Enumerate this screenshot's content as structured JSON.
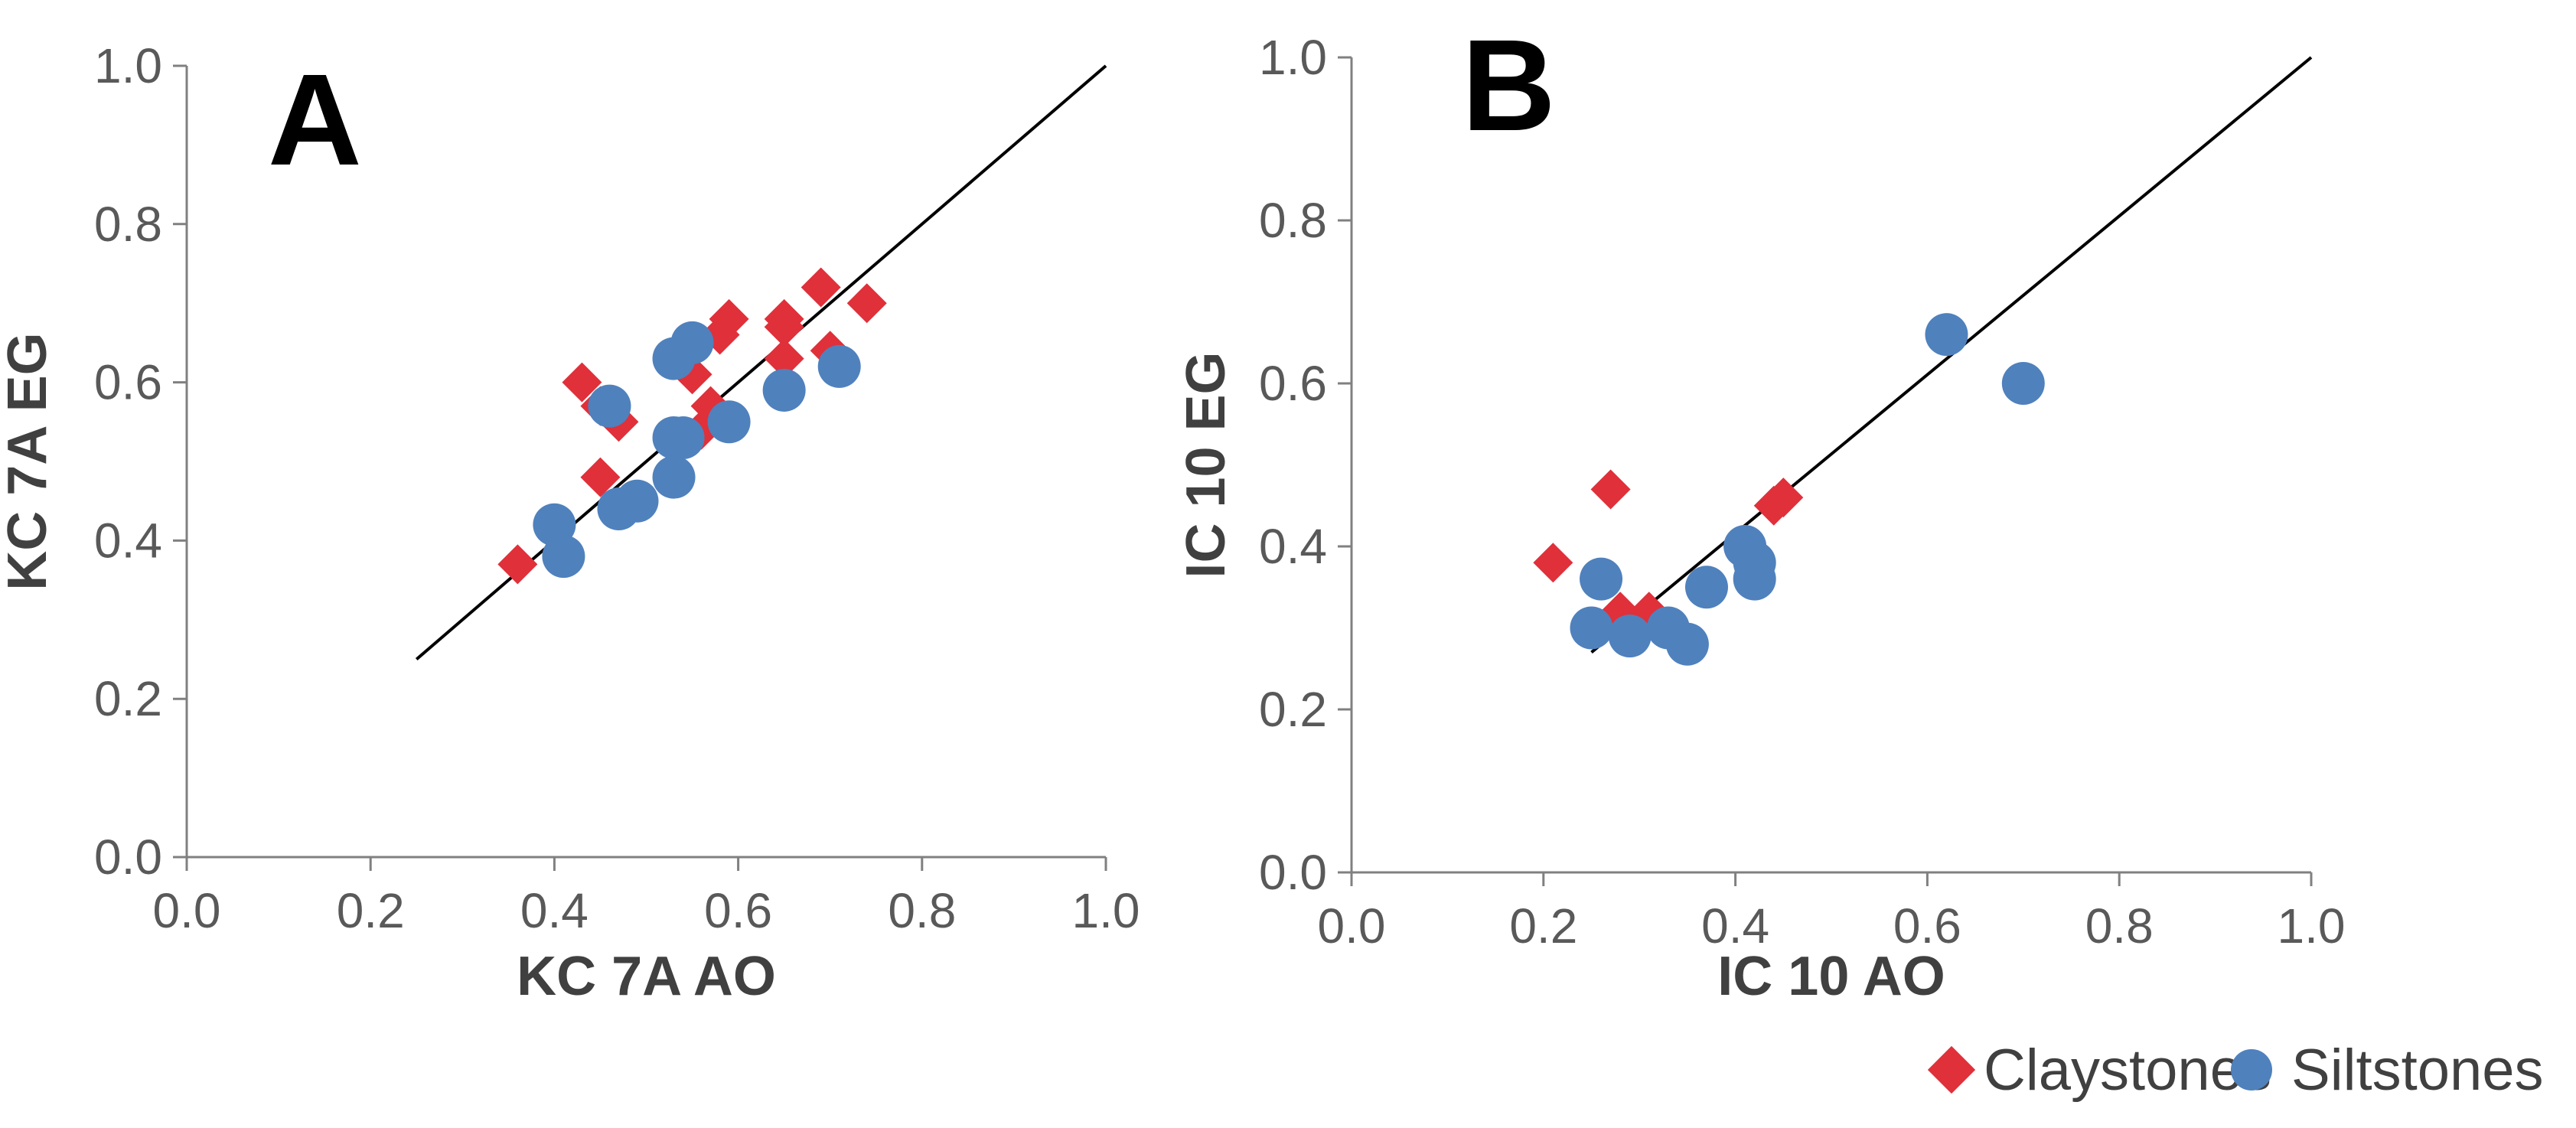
{
  "colors": {
    "claystones": "#e0303a",
    "siltstones": "#4f81bd",
    "axis": "#808080",
    "line": "#000000"
  },
  "legend": [
    {
      "label": "Claystones",
      "marker": "diamond",
      "series": "claystones"
    },
    {
      "label": "Siltstones",
      "marker": "circle",
      "series": "siltstones"
    }
  ],
  "chart_data": [
    {
      "type": "scatter",
      "panel": "A",
      "xlabel": "KC 7A AO",
      "ylabel": "KC 7A EG",
      "xlim": [
        0,
        1
      ],
      "ylim": [
        0,
        1
      ],
      "xticks": [
        "0.0",
        "0.2",
        "0.4",
        "0.6",
        "0.8",
        "1.0"
      ],
      "yticks": [
        "0.0",
        "0.2",
        "0.4",
        "0.6",
        "0.8",
        "1.0"
      ],
      "reference_line": {
        "x": [
          0.25,
          1.0
        ],
        "y": [
          0.25,
          1.0
        ]
      },
      "series": [
        {
          "name": "Claystones",
          "marker": "diamond",
          "points": [
            [
              0.36,
              0.37
            ],
            [
              0.43,
              0.6
            ],
            [
              0.45,
              0.57
            ],
            [
              0.45,
              0.48
            ],
            [
              0.47,
              0.55
            ],
            [
              0.55,
              0.61
            ],
            [
              0.56,
              0.54
            ],
            [
              0.57,
              0.57
            ],
            [
              0.58,
              0.66
            ],
            [
              0.59,
              0.68
            ],
            [
              0.65,
              0.67
            ],
            [
              0.65,
              0.68
            ],
            [
              0.65,
              0.63
            ],
            [
              0.69,
              0.72
            ],
            [
              0.7,
              0.64
            ],
            [
              0.74,
              0.7
            ]
          ]
        },
        {
          "name": "Siltstones",
          "marker": "circle",
          "points": [
            [
              0.4,
              0.42
            ],
            [
              0.41,
              0.38
            ],
            [
              0.46,
              0.57
            ],
            [
              0.47,
              0.44
            ],
            [
              0.49,
              0.45
            ],
            [
              0.53,
              0.63
            ],
            [
              0.53,
              0.53
            ],
            [
              0.53,
              0.48
            ],
            [
              0.54,
              0.53
            ],
            [
              0.55,
              0.65
            ],
            [
              0.59,
              0.55
            ],
            [
              0.65,
              0.59
            ],
            [
              0.71,
              0.62
            ]
          ]
        }
      ]
    },
    {
      "type": "scatter",
      "panel": "B",
      "xlabel": "IC 10 AO",
      "ylabel": "IC 10 EG",
      "xlim": [
        0,
        1
      ],
      "ylim": [
        0,
        1
      ],
      "xticks": [
        "0.0",
        "0.2",
        "0.4",
        "0.6",
        "0.8",
        "1.0"
      ],
      "yticks": [
        "0.0",
        "0.2",
        "0.4",
        "0.6",
        "0.8",
        "1.0"
      ],
      "reference_line": {
        "x": [
          0.25,
          1.0
        ],
        "y": [
          0.27,
          1.0
        ]
      },
      "series": [
        {
          "name": "Claystones",
          "marker": "diamond",
          "points": [
            [
              0.21,
              0.38
            ],
            [
              0.25,
              0.3
            ],
            [
              0.27,
              0.47
            ],
            [
              0.28,
              0.32
            ],
            [
              0.31,
              0.32
            ],
            [
              0.44,
              0.45
            ],
            [
              0.45,
              0.46
            ]
          ]
        },
        {
          "name": "Siltstones",
          "marker": "circle",
          "points": [
            [
              0.25,
              0.3
            ],
            [
              0.26,
              0.36
            ],
            [
              0.29,
              0.29
            ],
            [
              0.33,
              0.3
            ],
            [
              0.35,
              0.28
            ],
            [
              0.37,
              0.35
            ],
            [
              0.41,
              0.4
            ],
            [
              0.42,
              0.38
            ],
            [
              0.42,
              0.36
            ],
            [
              0.62,
              0.66
            ],
            [
              0.7,
              0.6
            ]
          ]
        }
      ]
    }
  ]
}
